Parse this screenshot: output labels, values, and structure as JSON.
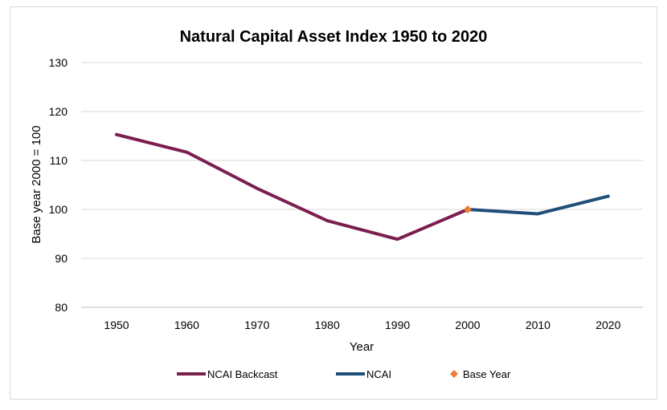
{
  "chart_data": {
    "type": "line",
    "title": "Natural Capital Asset Index 1950 to 2020",
    "xlabel": "Year",
    "ylabel": "Base year 2000 = 100",
    "ylim": [
      80,
      130
    ],
    "yticks": [
      "80",
      "90",
      "100",
      "110",
      "120",
      "130"
    ],
    "categories": [
      "1950",
      "1960",
      "1970",
      "1980",
      "1990",
      "2000",
      "2010",
      "2020"
    ],
    "grid": true,
    "legend_position": "bottom",
    "series": [
      {
        "name": "NCAI Backcast",
        "color": "#7B1F4F",
        "x": [
          1950,
          1960,
          1970,
          1980,
          1990,
          2000
        ],
        "values": [
          115.3,
          111.7,
          104.3,
          97.7,
          93.9,
          100.0
        ]
      },
      {
        "name": "NCAI",
        "color": "#1F4E79",
        "x": [
          2000,
          2010,
          2020
        ],
        "values": [
          100.0,
          99.1,
          102.7
        ]
      },
      {
        "name": "Base Year",
        "color": "#ED7D31",
        "marker": "diamond",
        "x": [
          2000
        ],
        "values": [
          100.0
        ]
      }
    ]
  }
}
